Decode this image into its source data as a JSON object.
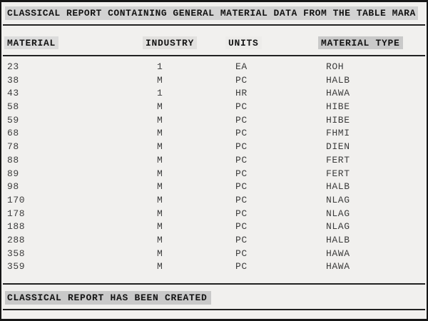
{
  "report": {
    "title": "CLASSICAL REPORT CONTAINING GENERAL MATERIAL DATA FROM THE TABLE MARA",
    "status_message": "CLASSICAL REPORT HAS BEEN CREATED",
    "table": {
      "columns": [
        "MATERIAL",
        "INDUSTRY",
        "UNITS",
        "MATERIAL TYPE"
      ],
      "rows": [
        [
          "23",
          "1",
          "EA",
          "ROH"
        ],
        [
          "38",
          "M",
          "PC",
          "HALB"
        ],
        [
          "43",
          "1",
          "HR",
          "HAWA"
        ],
        [
          "58",
          "M",
          "PC",
          "HIBE"
        ],
        [
          "59",
          "M",
          "PC",
          "HIBE"
        ],
        [
          "68",
          "M",
          "PC",
          "FHMI"
        ],
        [
          "78",
          "M",
          "PC",
          "DIEN"
        ],
        [
          "88",
          "M",
          "PC",
          "FERT"
        ],
        [
          "89",
          "M",
          "PC",
          "FERT"
        ],
        [
          "98",
          "M",
          "PC",
          "HALB"
        ],
        [
          "170",
          "M",
          "PC",
          "NLAG"
        ],
        [
          "178",
          "M",
          "PC",
          "NLAG"
        ],
        [
          "188",
          "M",
          "PC",
          "NLAG"
        ],
        [
          "288",
          "M",
          "PC",
          "HALB"
        ],
        [
          "358",
          "M",
          "PC",
          "HAWA"
        ],
        [
          "359",
          "M",
          "PC",
          "HAWA"
        ]
      ]
    },
    "colors": {
      "page_background": "#f1f0ee",
      "window_border": "#161616",
      "rule": "#222222",
      "title_highlight": "#d2d2d2",
      "header_highlight_material": "#dcdcdc",
      "header_highlight_industry": "#e2e1df",
      "header_highlight_units": "#edecea",
      "header_highlight_material_type": "#c9c9c9",
      "footer_highlight": "#c9c9c9",
      "header_text": "#141414",
      "data_text": "#3c3c3c"
    }
  }
}
